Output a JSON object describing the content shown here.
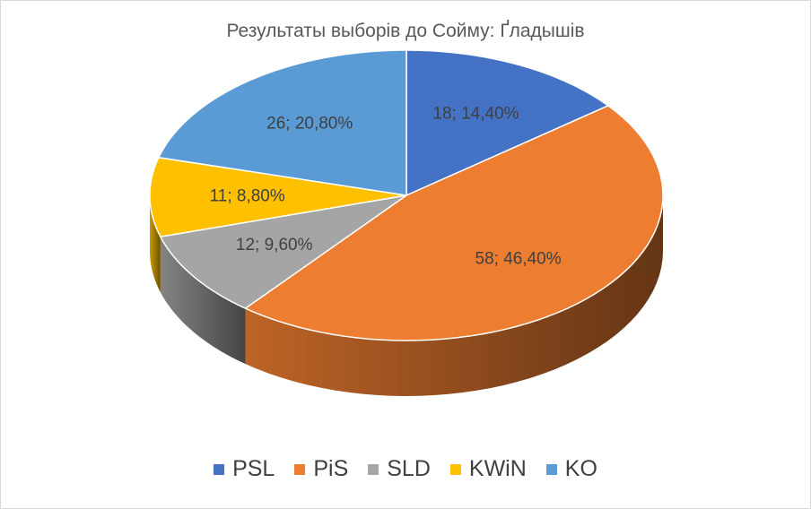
{
  "chart_data": {
    "type": "pie",
    "title": "Результаты выбоpiв до Сойму: Ґладышів",
    "categories": [
      "PSL",
      "PiS",
      "SLD",
      "KWiN",
      "KO"
    ],
    "values": [
      18,
      58,
      12,
      11,
      26
    ],
    "percents": [
      "14,40%",
      "46,40%",
      "9,60%",
      "8,80%",
      "20,80%"
    ],
    "data_labels": [
      "18; 14,40%",
      "58; 46,40%",
      "12; 9,60%",
      "11; 8,80%",
      "26; 20,80%"
    ],
    "colors": [
      "#4472c4",
      "#ed7d31",
      "#a5a5a5",
      "#ffc000",
      "#5b9bd5"
    ],
    "legend_position": "bottom",
    "style": "3d"
  }
}
